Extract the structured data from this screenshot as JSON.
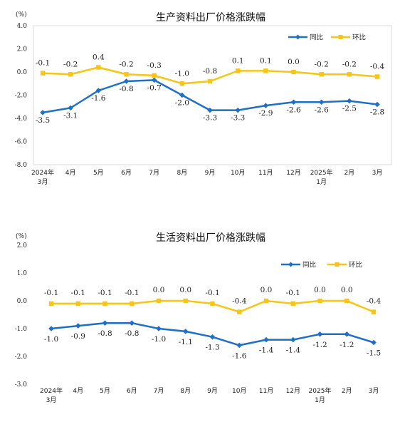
{
  "chart_data": [
    {
      "type": "line",
      "title": "生产资料出厂价格涨跌幅",
      "unit": "(%)",
      "categories": [
        [
          "2024年",
          "3月"
        ],
        [
          "4月"
        ],
        [
          "5月"
        ],
        [
          "6月"
        ],
        [
          "7月"
        ],
        [
          "8月"
        ],
        [
          "9月"
        ],
        [
          "10月"
        ],
        [
          "11月"
        ],
        [
          "12月"
        ],
        [
          "2025年",
          "1月"
        ],
        [
          "2月"
        ],
        [
          "3月"
        ]
      ],
      "ylim": [
        -8.0,
        4.0
      ],
      "yticks": [
        "4.0",
        "2.0",
        "0.0",
        "-2.0",
        "-4.0",
        "-6.0",
        "-8.0"
      ],
      "legend_position": "top-right",
      "grid": false,
      "series": [
        {
          "name": "同比",
          "color": "#1f6fc5",
          "marker": "diamond",
          "values": [
            -3.5,
            -3.1,
            -1.6,
            -0.8,
            -0.7,
            -2.0,
            -3.3,
            -3.3,
            -2.9,
            -2.6,
            -2.6,
            -2.5,
            -2.8
          ],
          "labels": [
            "-3.5",
            "-3.1",
            "-1.6",
            "-0.8",
            "-0.7",
            "-2.0",
            "-3.3",
            "-3.3",
            "-2.9",
            "-2.6",
            "-2.6",
            "-2.5",
            "-2.8"
          ]
        },
        {
          "name": "环比",
          "color": "#f5c518",
          "marker": "square",
          "values": [
            -0.1,
            -0.2,
            0.4,
            -0.2,
            -0.3,
            -1.0,
            -0.8,
            0.1,
            0.1,
            0.0,
            -0.2,
            -0.2,
            -0.4
          ],
          "labels": [
            "-0.1",
            "-0.2",
            "0.4",
            "-0.2",
            "-0.3",
            "-1.0",
            "-0.8",
            "0.1",
            "0.1",
            "0.0",
            "-0.2",
            "-0.2",
            "-0.4"
          ]
        }
      ]
    },
    {
      "type": "line",
      "title": "生活资料出厂价格涨跌幅",
      "unit": "(%)",
      "categories": [
        [
          "2024年",
          "3月"
        ],
        [
          "4月"
        ],
        [
          "5月"
        ],
        [
          "6月"
        ],
        [
          "7月"
        ],
        [
          "8月"
        ],
        [
          "9月"
        ],
        [
          "10月"
        ],
        [
          "11月"
        ],
        [
          "12月"
        ],
        [
          "2025年",
          "1月"
        ],
        [
          "2月"
        ],
        [
          "3月"
        ]
      ],
      "ylim": [
        -3.0,
        2.0
      ],
      "yticks": [
        "2.0",
        "1.0",
        "0.0",
        "-1.0",
        "-2.0",
        "-3.0"
      ],
      "legend_position": "top-right",
      "grid": false,
      "series": [
        {
          "name": "同比",
          "color": "#1f6fc5",
          "marker": "diamond",
          "values": [
            -1.0,
            -0.9,
            -0.8,
            -0.8,
            -1.0,
            -1.1,
            -1.3,
            -1.6,
            -1.4,
            -1.4,
            -1.2,
            -1.2,
            -1.5
          ],
          "labels": [
            "-1.0",
            "-0.9",
            "-0.8",
            "-0.8",
            "-1.0",
            "-1.1",
            "-1.3",
            "-1.6",
            "-1.4",
            "-1.4",
            "-1.2",
            "-1.2",
            "-1.5"
          ]
        },
        {
          "name": "环比",
          "color": "#f5c518",
          "marker": "square",
          "values": [
            -0.1,
            -0.1,
            -0.1,
            -0.1,
            0.0,
            0.0,
            -0.1,
            -0.4,
            0.0,
            -0.1,
            0.0,
            0.0,
            -0.4
          ],
          "labels": [
            "-0.1",
            "-0.1",
            "-0.1",
            "-0.1",
            "0.0",
            "0.0",
            "-0.1",
            "-0.4",
            "0.0",
            "-0.1",
            "0.0",
            "0.0",
            "-0.4"
          ]
        }
      ]
    }
  ]
}
